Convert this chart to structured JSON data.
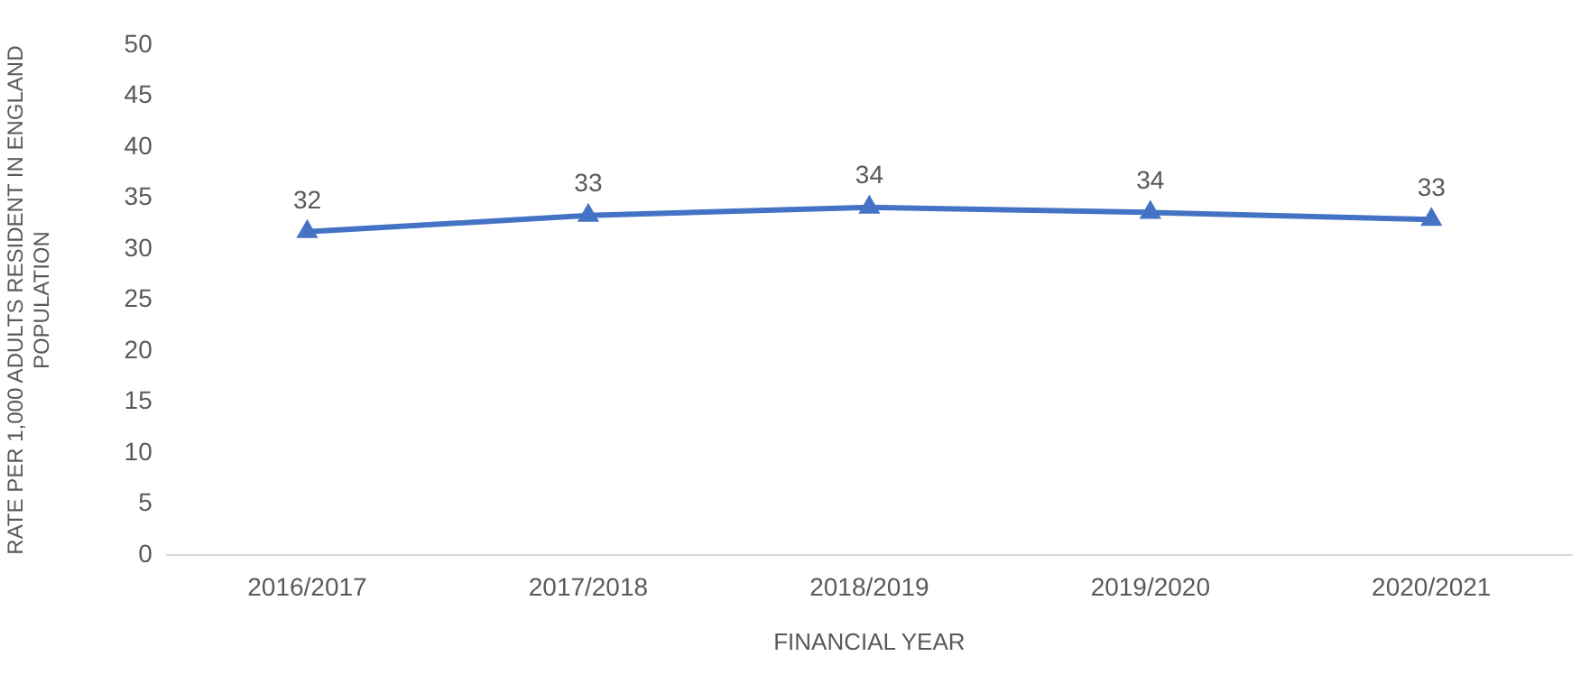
{
  "chart_data": {
    "type": "line",
    "xlabel": "FINANCIAL YEAR",
    "ylabel": [
      "RATE PER 1,000 ADULTS RESIDENT IN ENGLAND",
      "POPULATION"
    ],
    "categories": [
      "2016/2017",
      "2017/2018",
      "2018/2019",
      "2019/2020",
      "2020/2021"
    ],
    "series": [
      {
        "color": "#4472c4",
        "values": [
          31.7,
          33.3,
          34.1,
          33.6,
          32.9
        ],
        "value_labels": [
          "32",
          "33",
          "34",
          "34",
          "33"
        ]
      }
    ],
    "ylim": [
      0,
      50
    ],
    "yticks": [
      0,
      5,
      10,
      15,
      20,
      25,
      30,
      35,
      40,
      45,
      50
    ],
    "grid": false,
    "legend": false,
    "marker": "triangle",
    "line_style": "solid"
  }
}
